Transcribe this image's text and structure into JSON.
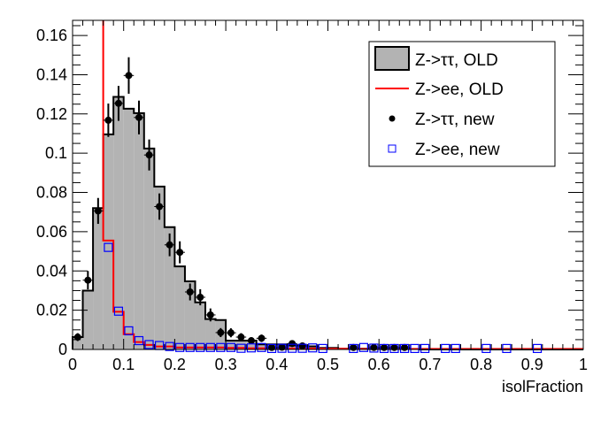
{
  "chart_data": {
    "type": "bar",
    "title": "",
    "xlabel": "isolFraction",
    "ylabel": "",
    "xlim": [
      0,
      1
    ],
    "ylim": [
      0,
      0.1677
    ],
    "bin_width": 0.02,
    "x_ticks": [
      "0",
      "0.1",
      "0.2",
      "0.3",
      "0.4",
      "0.5",
      "0.6",
      "0.7",
      "0.8",
      "0.9",
      "1"
    ],
    "y_ticks": [
      "0",
      "0.02",
      "0.04",
      "0.06",
      "0.08",
      "0.1",
      "0.12",
      "0.14",
      "0.16"
    ],
    "legend_position": "top-right",
    "series": [
      {
        "name": "Z->ττ, OLD",
        "style": "filled-histogram",
        "fill": "#b3b3b3",
        "line": "#000000",
        "bin_edges_start": 0,
        "values": [
          0.0063,
          0.03,
          0.072,
          0.1096,
          0.1287,
          0.1227,
          0.1204,
          0.1024,
          0.083,
          0.0623,
          0.0423,
          0.0347,
          0.024,
          0.0155,
          0.015,
          0.0045,
          0.0045,
          0.0045,
          0.0026,
          0.0026,
          0.0026,
          0.002,
          0.002,
          0.0016,
          0.0008,
          0.0008,
          0.0004,
          0.0004,
          0.0004,
          0.0004,
          0.0004,
          0.0004,
          0.0004,
          0.0002,
          0,
          0,
          0,
          0,
          0,
          0,
          0,
          0,
          0,
          0,
          0,
          0,
          0,
          0,
          0,
          0
        ]
      },
      {
        "name": "Z->ee, OLD",
        "style": "line-histogram",
        "line": "#ff0000",
        "bin_edges_start": 0.06,
        "first_bin_offscale": true,
        "values": [
          0.0555,
          0.0192,
          0.0078,
          0.0038,
          0.0023,
          0.0015,
          0.0015,
          0.001,
          0.001,
          0.001,
          0.001,
          0.001,
          0.0008,
          0.0008,
          0.0006,
          0.0006,
          0.0005,
          0.0005,
          0.0005,
          0.0005,
          0.0005,
          0.0004,
          0.0004,
          0.0004,
          0.0004,
          0.0003,
          0.0003,
          0.0003,
          0.0003,
          0.0003,
          0.0003,
          0.0003,
          0.0003,
          0.0003,
          0.0003,
          0.0003,
          0.0003,
          0.0003,
          0.0003,
          0.0003,
          0.0003,
          0.0003,
          0.0003,
          0.0003,
          0.0003,
          0.0003,
          0.0003
        ]
      },
      {
        "name": "Z->ττ, new",
        "style": "markers-errors",
        "color": "#000000",
        "x": [
          0.01,
          0.03,
          0.05,
          0.07,
          0.09,
          0.11,
          0.13,
          0.15,
          0.17,
          0.19,
          0.21,
          0.23,
          0.25,
          0.27,
          0.29,
          0.31,
          0.33,
          0.35,
          0.37,
          0.39,
          0.41,
          0.43,
          0.45,
          0.55,
          0.59,
          0.61,
          0.63,
          0.65
        ],
        "y": [
          0.0063,
          0.0353,
          0.0706,
          0.1168,
          0.1254,
          0.1396,
          0.1182,
          0.0991,
          0.0728,
          0.0533,
          0.0495,
          0.0293,
          0.0266,
          0.0176,
          0.0086,
          0.0085,
          0.0063,
          0.0045,
          0.0057,
          0.001,
          0.0011,
          0.003,
          0.0018,
          0.001,
          0.001,
          0.001,
          0.001,
          0.001
        ],
        "err": [
          0.002,
          0.0047,
          0.0066,
          0.0085,
          0.0089,
          0.0093,
          0.0086,
          0.0079,
          0.0067,
          0.0058,
          0.0056,
          0.0043,
          0.0041,
          0.0033,
          0.0023,
          0.0023,
          0.002,
          0.0017,
          0.0019,
          0.0008,
          0.0008,
          0.0014,
          0.001,
          0.0008,
          0.0008,
          0.0008,
          0.0008,
          0.0008
        ]
      },
      {
        "name": "Z->ee, new",
        "style": "open-squares",
        "color": "#0000ff",
        "x": [
          0.07,
          0.09,
          0.11,
          0.13,
          0.15,
          0.17,
          0.19,
          0.21,
          0.23,
          0.25,
          0.27,
          0.29,
          0.31,
          0.33,
          0.35,
          0.37,
          0.39,
          0.41,
          0.43,
          0.45,
          0.47,
          0.49,
          0.55,
          0.57,
          0.59,
          0.61,
          0.63,
          0.65,
          0.67,
          0.69,
          0.73,
          0.75,
          0.81,
          0.85,
          0.91
        ],
        "y": [
          0.052,
          0.0195,
          0.0095,
          0.0045,
          0.0025,
          0.002,
          0.0015,
          0.001,
          0.001,
          0.001,
          0.001,
          0.001,
          0.001,
          0.0006,
          0.0008,
          0.001,
          0.0005,
          0.0006,
          0.0006,
          0.0006,
          0.0008,
          0.0005,
          0.0005,
          0.001,
          0.0007,
          0.0005,
          0.0005,
          0.0005,
          0.0005,
          0.0005,
          0.0005,
          0.0005,
          0.0005,
          0.0005,
          0.0005
        ]
      }
    ]
  }
}
